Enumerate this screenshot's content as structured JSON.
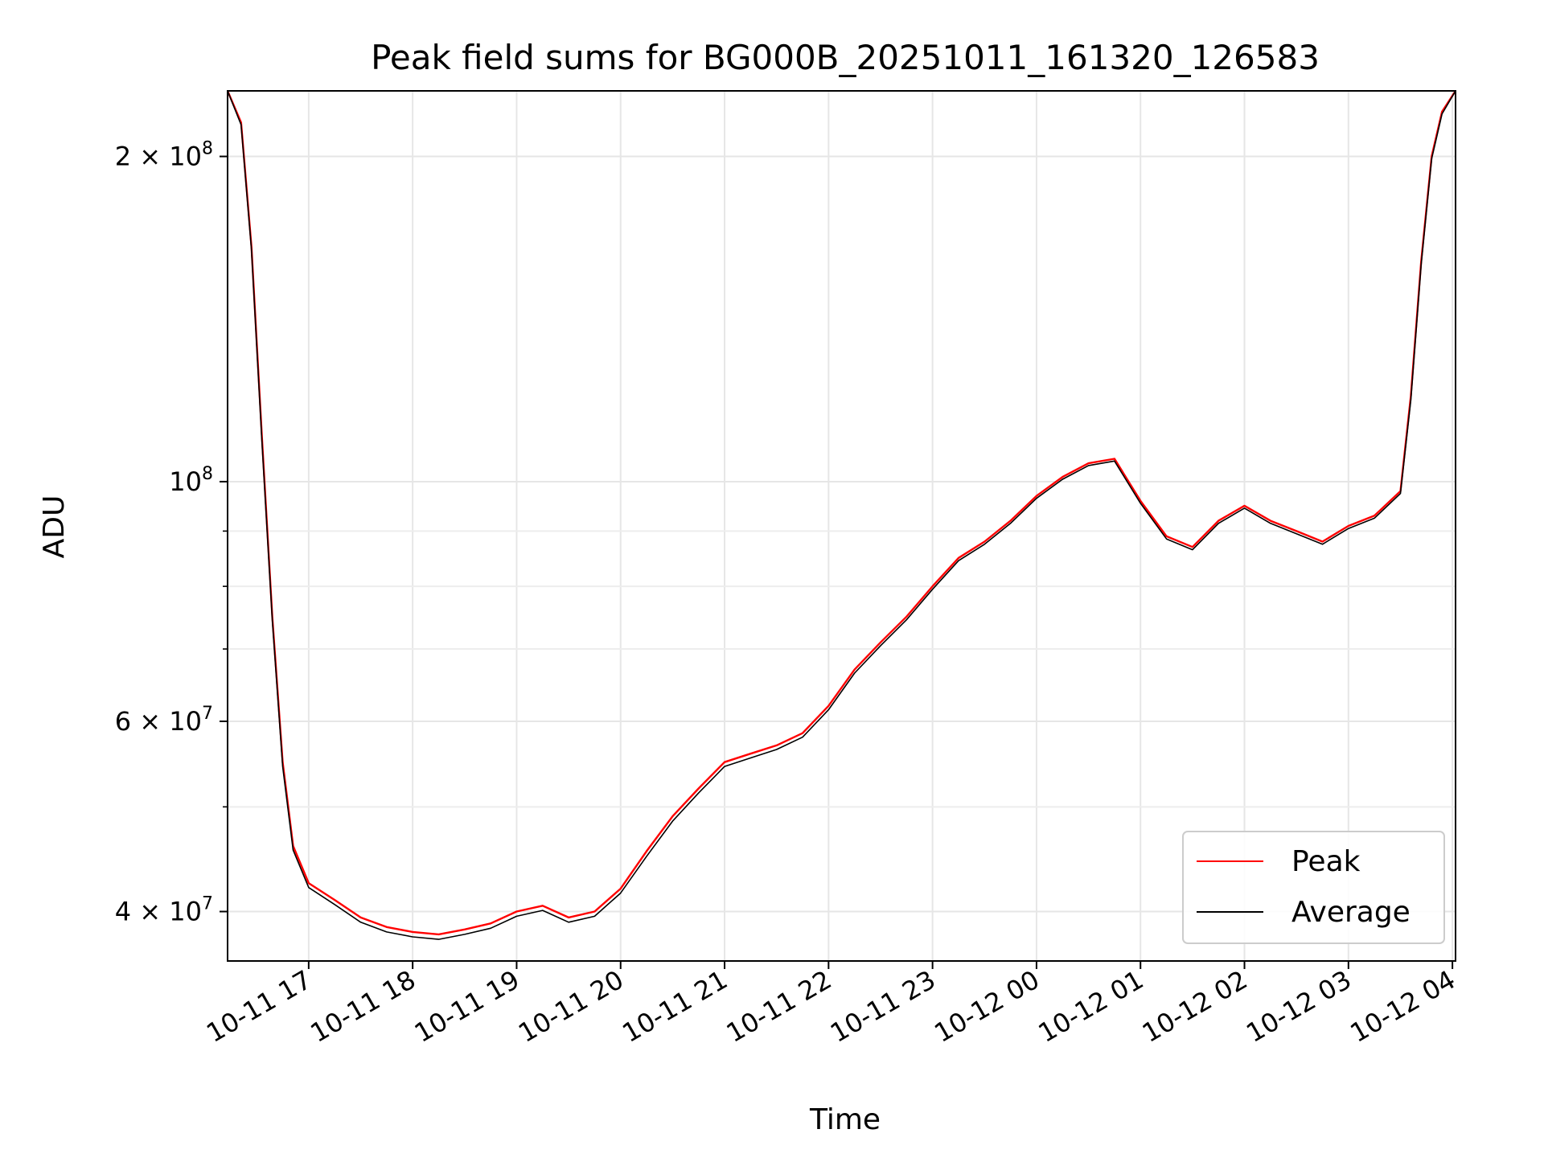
{
  "chart_data": {
    "type": "line",
    "title": "Peak field sums for BG000B_20251011_161320_126583",
    "xlabel": "Time",
    "ylabel": "ADU",
    "yscale": "log",
    "ylim": [
      36000000,
      230000000
    ],
    "xlim_hours": [
      16.22,
      28.03
    ],
    "grid": true,
    "legend_position": "lower-right",
    "x_ticks": [
      {
        "hour": 17,
        "label": "10-11 17"
      },
      {
        "hour": 18,
        "label": "10-11 18"
      },
      {
        "hour": 19,
        "label": "10-11 19"
      },
      {
        "hour": 20,
        "label": "10-11 20"
      },
      {
        "hour": 21,
        "label": "10-11 21"
      },
      {
        "hour": 22,
        "label": "10-11 22"
      },
      {
        "hour": 23,
        "label": "10-11 23"
      },
      {
        "hour": 24,
        "label": "10-12 00"
      },
      {
        "hour": 25,
        "label": "10-12 01"
      },
      {
        "hour": 26,
        "label": "10-12 02"
      },
      {
        "hour": 27,
        "label": "10-12 03"
      },
      {
        "hour": 28,
        "label": "10-12 04"
      }
    ],
    "y_major_ticks": [
      {
        "value": 40000000,
        "mantissa": "4",
        "exp": "7"
      },
      {
        "value": 60000000,
        "mantissa": "6",
        "exp": "7"
      },
      {
        "value": 100000000,
        "mantissa": "",
        "exp": "8"
      },
      {
        "value": 200000000,
        "mantissa": "2",
        "exp": "8"
      }
    ],
    "y_minor_ticks": [
      50000000,
      70000000,
      80000000,
      90000000
    ],
    "x_hours": [
      16.22,
      16.35,
      16.45,
      16.55,
      16.65,
      16.75,
      16.85,
      17.0,
      17.25,
      17.5,
      17.75,
      18.0,
      18.25,
      18.5,
      18.75,
      19.0,
      19.25,
      19.5,
      19.75,
      20.0,
      20.25,
      20.5,
      20.75,
      21.0,
      21.25,
      21.5,
      21.75,
      22.0,
      22.25,
      22.5,
      22.75,
      23.0,
      23.25,
      23.5,
      23.75,
      24.0,
      24.25,
      24.5,
      24.75,
      25.0,
      25.25,
      25.5,
      25.75,
      26.0,
      26.25,
      26.5,
      26.75,
      27.0,
      27.25,
      27.5,
      27.6,
      27.7,
      27.8,
      27.9,
      28.03
    ],
    "series": [
      {
        "name": "Peak",
        "color": "#ff0000",
        "values": [
          230000000,
          215000000,
          165000000,
          110000000,
          75000000,
          55000000,
          46000000,
          42500000,
          41000000,
          39500000,
          38700000,
          38300000,
          38100000,
          38500000,
          39000000,
          40000000,
          40500000,
          39500000,
          40000000,
          42000000,
          45500000,
          49000000,
          52000000,
          55000000,
          56000000,
          57000000,
          58500000,
          62000000,
          67000000,
          71000000,
          75000000,
          80000000,
          85000000,
          88000000,
          92000000,
          97000000,
          101000000,
          104000000,
          105000000,
          96000000,
          89000000,
          87000000,
          92000000,
          95000000,
          92000000,
          90000000,
          88000000,
          91000000,
          93000000,
          98000000,
          120000000,
          160000000,
          200000000,
          220000000,
          230000000
        ]
      },
      {
        "name": "Average",
        "color": "#000000",
        "values": [
          230000000,
          214000000,
          164000000,
          109000000,
          74500000,
          54500000,
          45600000,
          42100000,
          40600000,
          39100000,
          38300000,
          37900000,
          37700000,
          38100000,
          38600000,
          39600000,
          40100000,
          39100000,
          39600000,
          41600000,
          45000000,
          48500000,
          51500000,
          54500000,
          55500000,
          56500000,
          58000000,
          61500000,
          66500000,
          70500000,
          74500000,
          79500000,
          84500000,
          87500000,
          91500000,
          96500000,
          100500000,
          103500000,
          104500000,
          95500000,
          88500000,
          86500000,
          91500000,
          94500000,
          91500000,
          89500000,
          87500000,
          90500000,
          92500000,
          97500000,
          119000000,
          159000000,
          199000000,
          219000000,
          230000000
        ]
      }
    ]
  }
}
